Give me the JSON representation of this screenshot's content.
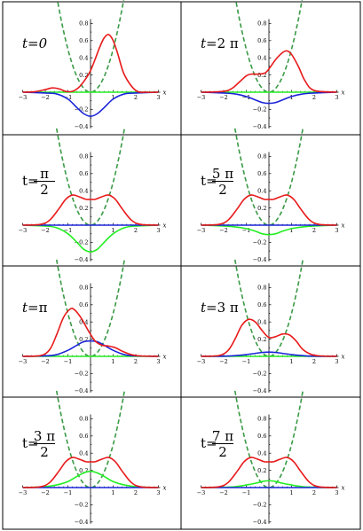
{
  "chart_data": {
    "type": "line",
    "layout": "4 rows x 2 columns grid of panels",
    "x_label": "x",
    "x_range": [
      -3,
      3
    ],
    "y_range": [
      -0.4,
      0.8
    ],
    "x_ticks": [
      "-3",
      "-2",
      "-1",
      "1",
      "2",
      "3"
    ],
    "y_ticks": [
      "0.8",
      "0.6",
      "0.4",
      "0.2",
      "-0.2",
      "-0.4"
    ],
    "series_styles": {
      "abs": {
        "color": "#e8191a",
        "style": "solid"
      },
      "real": {
        "color": "#22ee22",
        "style": "solid"
      },
      "imag": {
        "color": "#1a24d8",
        "style": "solid"
      },
      "potential": {
        "color": "#3a9a46",
        "style": "dashed"
      }
    },
    "panels": [
      {
        "label_prefix": "t=",
        "label_num": "0",
        "label_den": "",
        "abs_x": [
          -3,
          -2.5,
          -2,
          -1.7,
          -1.4,
          -1.1,
          -0.8,
          -0.5,
          -0.2,
          0,
          0.2,
          0.4,
          0.6,
          0.8,
          1.0,
          1.2,
          1.5,
          2,
          2.5,
          3
        ],
        "abs_y": [
          0,
          0.005,
          0.03,
          0.05,
          0.04,
          0.01,
          0.01,
          0.06,
          0.16,
          0.25,
          0.38,
          0.52,
          0.63,
          0.67,
          0.6,
          0.45,
          0.2,
          0.02,
          0,
          0
        ],
        "real_x": [
          -3,
          3
        ],
        "real_y": [
          0,
          0
        ],
        "imag_x": [
          -3,
          -2,
          -1.5,
          -1,
          -0.6,
          -0.3,
          0,
          0.3,
          0.6,
          1,
          1.5,
          2,
          3
        ],
        "imag_y": [
          0,
          -0.01,
          -0.02,
          -0.08,
          -0.18,
          -0.25,
          -0.28,
          -0.25,
          -0.18,
          -0.08,
          -0.02,
          -0.01,
          0
        ]
      },
      {
        "label_prefix": "t=",
        "label_num": "2 π",
        "label_den": "",
        "abs_x": [
          -3,
          -2,
          -1.6,
          -1.3,
          -1,
          -0.8,
          -0.5,
          -0.2,
          0,
          0.3,
          0.6,
          0.8,
          1.0,
          1.3,
          1.6,
          2,
          3
        ],
        "abs_y": [
          0,
          0.01,
          0.05,
          0.12,
          0.19,
          0.21,
          0.21,
          0.22,
          0.27,
          0.38,
          0.46,
          0.48,
          0.44,
          0.3,
          0.13,
          0.02,
          0
        ],
        "real_x": [
          -3,
          3
        ],
        "real_y": [
          0,
          0
        ],
        "imag_x": [
          -3,
          -2,
          -1.5,
          -1,
          -0.6,
          -0.3,
          0,
          0.3,
          0.6,
          1,
          1.5,
          2,
          3
        ],
        "imag_y": [
          0,
          -0.01,
          -0.02,
          -0.05,
          -0.09,
          -0.12,
          -0.13,
          -0.12,
          -0.09,
          -0.05,
          -0.02,
          -0.01,
          0
        ]
      },
      {
        "label_prefix": "t=",
        "label_num": "π",
        "label_den": "2",
        "abs_x": [
          -3,
          -2.2,
          -1.8,
          -1.4,
          -1.1,
          -0.8,
          -0.5,
          -0.2,
          0,
          0.2,
          0.5,
          0.8,
          1.1,
          1.4,
          1.8,
          2.2,
          3
        ],
        "abs_y": [
          0,
          0.01,
          0.06,
          0.19,
          0.3,
          0.35,
          0.33,
          0.3,
          0.3,
          0.3,
          0.33,
          0.35,
          0.3,
          0.19,
          0.06,
          0.01,
          0
        ],
        "real_x": [
          -3,
          -2,
          -1.5,
          -1,
          -0.6,
          -0.3,
          0,
          0.3,
          0.6,
          1,
          1.5,
          2,
          3
        ],
        "real_y": [
          0,
          -0.01,
          -0.03,
          -0.1,
          -0.2,
          -0.28,
          -0.31,
          -0.28,
          -0.2,
          -0.1,
          -0.03,
          -0.01,
          0
        ],
        "imag_x": [
          -3,
          3
        ],
        "imag_y": [
          0,
          0
        ]
      },
      {
        "label_prefix": "t=",
        "label_num": "5 π",
        "label_den": "2",
        "abs_x": [
          -3,
          -2.2,
          -1.8,
          -1.4,
          -1.1,
          -0.8,
          -0.5,
          -0.2,
          0,
          0.2,
          0.5,
          0.8,
          1.1,
          1.4,
          1.8,
          2.2,
          3
        ],
        "abs_y": [
          0,
          0.01,
          0.06,
          0.19,
          0.3,
          0.35,
          0.33,
          0.3,
          0.3,
          0.3,
          0.33,
          0.35,
          0.3,
          0.19,
          0.06,
          0.01,
          0
        ],
        "real_x": [
          -3,
          -2,
          -1.5,
          -1,
          -0.6,
          -0.3,
          0,
          0.3,
          0.6,
          1,
          1.5,
          2,
          3
        ],
        "real_y": [
          0,
          -0.01,
          -0.02,
          -0.04,
          -0.07,
          -0.1,
          -0.11,
          -0.1,
          -0.07,
          -0.04,
          -0.02,
          -0.01,
          0
        ],
        "imag_x": [
          -3,
          3
        ],
        "imag_y": [
          0,
          0
        ]
      },
      {
        "label_prefix": "t=",
        "label_num": "π",
        "label_den": "",
        "abs_x": [
          -3,
          -2.2,
          -1.8,
          -1.5,
          -1.2,
          -0.9,
          -0.7,
          -0.4,
          -0.1,
          0.2,
          0.5,
          0.8,
          1.1,
          1.4,
          1.8,
          2.2,
          3
        ],
        "abs_y": [
          0,
          0.01,
          0.08,
          0.25,
          0.45,
          0.55,
          0.54,
          0.44,
          0.3,
          0.18,
          0.13,
          0.12,
          0.1,
          0.06,
          0.02,
          0.005,
          0
        ],
        "real_x": [
          -3,
          3
        ],
        "real_y": [
          0,
          0
        ],
        "imag_x": [
          -3,
          -2,
          -1.5,
          -1,
          -0.6,
          -0.3,
          0,
          0.3,
          0.6,
          1,
          1.5,
          2,
          3
        ],
        "imag_y": [
          0,
          0.005,
          0.02,
          0.07,
          0.13,
          0.17,
          0.18,
          0.17,
          0.13,
          0.07,
          0.02,
          0.005,
          0
        ]
      },
      {
        "label_prefix": "t=",
        "label_num": "3 π",
        "label_den": "",
        "abs_x": [
          -3,
          -2.2,
          -1.8,
          -1.5,
          -1.2,
          -0.9,
          -0.6,
          -0.3,
          0,
          0.3,
          0.6,
          0.9,
          1.2,
          1.5,
          1.9,
          2.3,
          3
        ],
        "abs_y": [
          0,
          0.01,
          0.07,
          0.2,
          0.36,
          0.43,
          0.4,
          0.3,
          0.22,
          0.23,
          0.26,
          0.25,
          0.18,
          0.08,
          0.02,
          0.005,
          0
        ],
        "real_x": [
          -3,
          3
        ],
        "real_y": [
          0,
          0
        ],
        "imag_x": [
          -3,
          -2,
          -1.5,
          -1,
          -0.6,
          -0.3,
          0,
          0.3,
          0.6,
          1,
          1.5,
          2,
          3
        ],
        "imag_y": [
          0,
          0.002,
          0.008,
          0.02,
          0.035,
          0.045,
          0.05,
          0.045,
          0.035,
          0.02,
          0.008,
          0.002,
          0
        ]
      },
      {
        "label_prefix": "t=",
        "label_num": "3 π",
        "label_den": "2",
        "abs_x": [
          -3,
          -2.2,
          -1.8,
          -1.4,
          -1.1,
          -0.8,
          -0.5,
          -0.2,
          0,
          0.2,
          0.5,
          0.8,
          1.1,
          1.4,
          1.8,
          2.2,
          3
        ],
        "abs_y": [
          0,
          0.01,
          0.06,
          0.19,
          0.3,
          0.35,
          0.33,
          0.3,
          0.3,
          0.3,
          0.33,
          0.35,
          0.3,
          0.19,
          0.06,
          0.01,
          0
        ],
        "real_x": [
          -3,
          -2,
          -1.5,
          -1,
          -0.6,
          -0.3,
          0,
          0.3,
          0.6,
          1,
          1.5,
          2,
          3
        ],
        "real_y": [
          0,
          0.01,
          0.03,
          0.07,
          0.13,
          0.17,
          0.19,
          0.17,
          0.13,
          0.07,
          0.03,
          0.01,
          0
        ],
        "imag_x": [
          -3,
          3
        ],
        "imag_y": [
          0,
          0
        ]
      },
      {
        "label_prefix": "t=",
        "label_num": "7 π",
        "label_den": "2",
        "abs_x": [
          -3,
          -2.2,
          -1.8,
          -1.4,
          -1.1,
          -0.8,
          -0.5,
          -0.2,
          0,
          0.2,
          0.5,
          0.8,
          1.1,
          1.4,
          1.8,
          2.2,
          3
        ],
        "abs_y": [
          0,
          0.01,
          0.06,
          0.19,
          0.3,
          0.35,
          0.33,
          0.3,
          0.3,
          0.3,
          0.33,
          0.35,
          0.3,
          0.19,
          0.06,
          0.01,
          0
        ],
        "real_x": [
          -3,
          -2,
          -1.5,
          -1,
          -0.6,
          -0.3,
          0,
          0.3,
          0.6,
          1,
          1.5,
          2,
          3
        ],
        "real_y": [
          0,
          0.003,
          0.01,
          0.03,
          0.05,
          0.07,
          0.08,
          0.07,
          0.05,
          0.03,
          0.01,
          0.003,
          0
        ],
        "imag_x": [
          -3,
          3
        ],
        "imag_y": [
          0,
          0
        ]
      }
    ]
  }
}
